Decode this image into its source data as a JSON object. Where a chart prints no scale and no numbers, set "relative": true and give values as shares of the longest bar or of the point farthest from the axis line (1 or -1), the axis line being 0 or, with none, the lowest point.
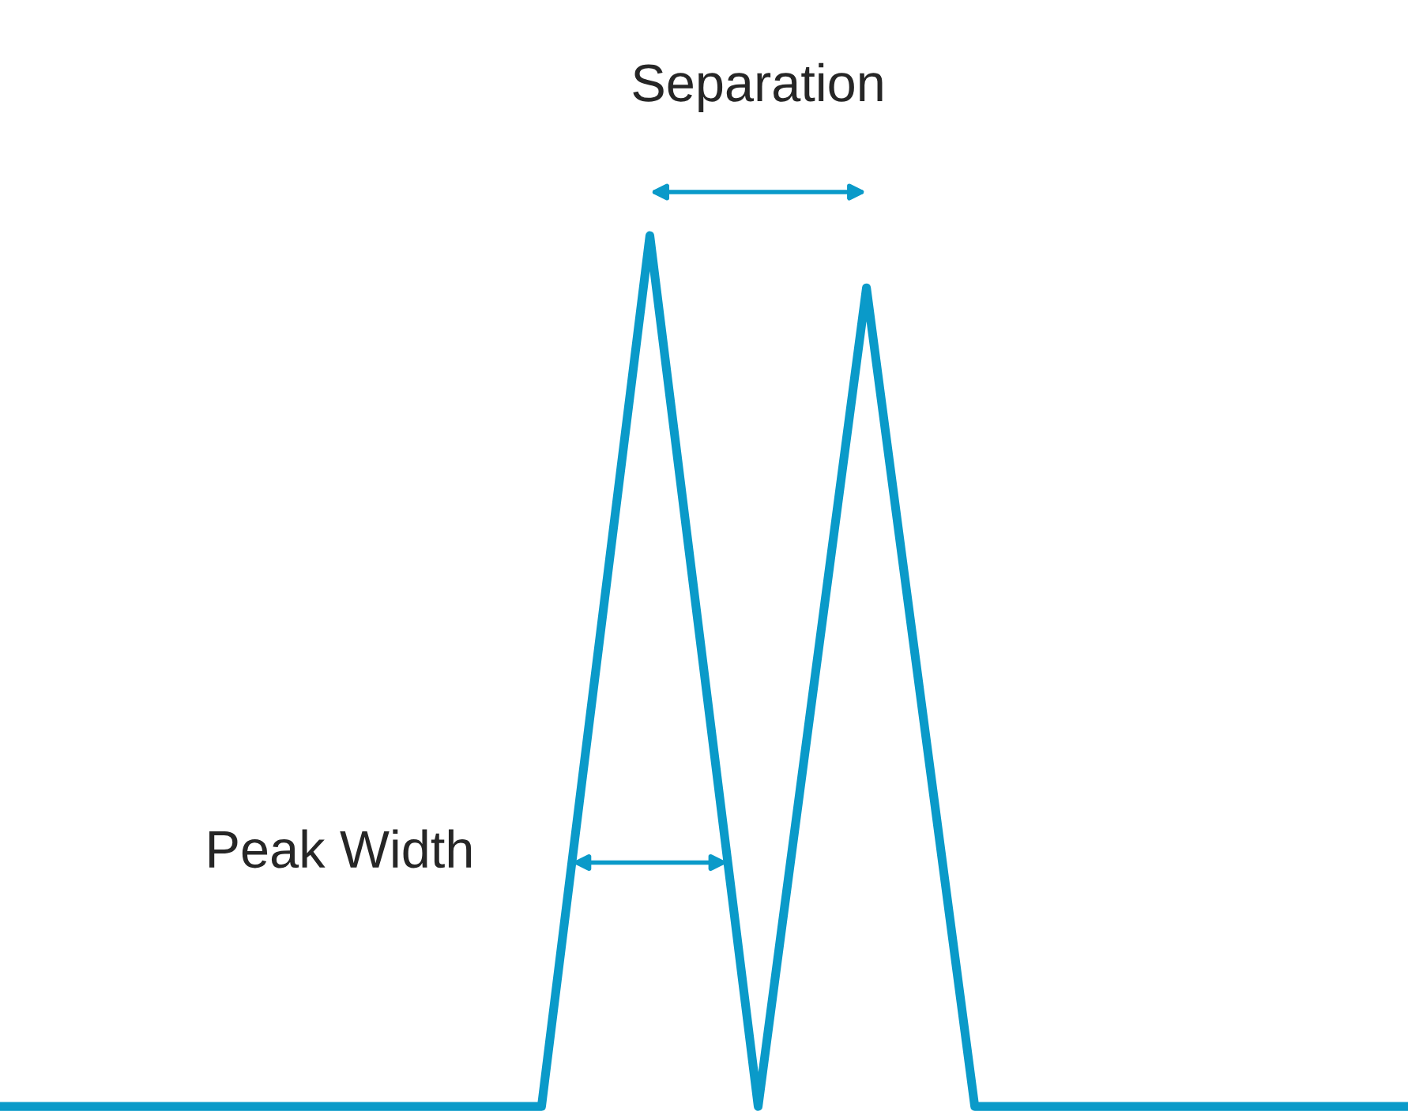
{
  "chart_data": {
    "type": "line",
    "relative": true,
    "categories": [
      null,
      null,
      null,
      null,
      null,
      null,
      null,
      null,
      null,
      null,
      null,
      null,
      null,
      null
    ],
    "series": [
      {
        "color": "#0a9ac9",
        "values": [
          0,
          0,
          0,
          0,
          0,
          0,
          1,
          0,
          0.94,
          0,
          0,
          0,
          0,
          0
        ]
      }
    ],
    "annotations": [
      "Separation",
      "Peak Width"
    ],
    "grid": false,
    "legend": false,
    "marker": "none",
    "line_style": "solid"
  }
}
